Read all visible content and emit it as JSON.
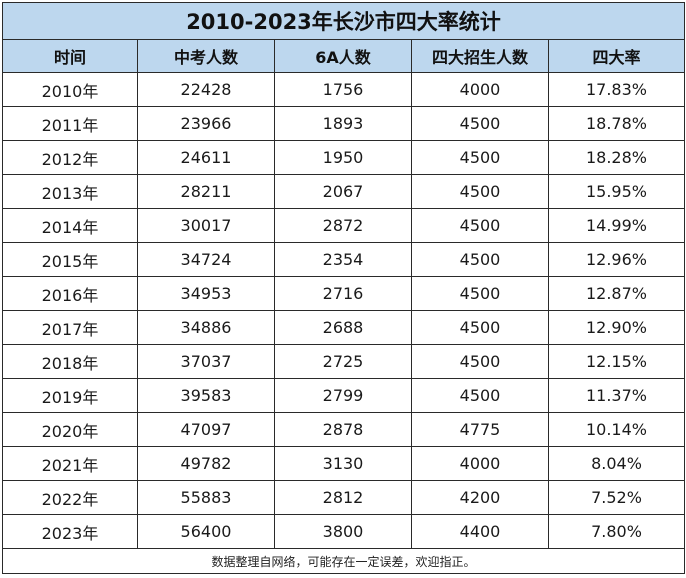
{
  "title": "2010-2023年长沙市四大率统计",
  "columns": [
    "时间",
    "中考人数",
    "6A人数",
    "四大招生人数",
    "四大率"
  ],
  "rows": [
    [
      "2010年",
      "22428",
      "1756",
      "4000",
      "17.83%"
    ],
    [
      "2011年",
      "23966",
      "1893",
      "4500",
      "18.78%"
    ],
    [
      "2012年",
      "24611",
      "1950",
      "4500",
      "18.28%"
    ],
    [
      "2013年",
      "28211",
      "2067",
      "4500",
      "15.95%"
    ],
    [
      "2014年",
      "30017",
      "2872",
      "4500",
      "14.99%"
    ],
    [
      "2015年",
      "34724",
      "2354",
      "4500",
      "12.96%"
    ],
    [
      "2016年",
      "34953",
      "2716",
      "4500",
      "12.87%"
    ],
    [
      "2017年",
      "34886",
      "2688",
      "4500",
      "12.90%"
    ],
    [
      "2018年",
      "37037",
      "2725",
      "4500",
      "12.15%"
    ],
    [
      "2019年",
      "39583",
      "2799",
      "4500",
      "11.37%"
    ],
    [
      "2020年",
      "47097",
      "2878",
      "4775",
      "10.14%"
    ],
    [
      "2021年",
      "49782",
      "3130",
      "4000",
      "8.04%"
    ],
    [
      "2022年",
      "55883",
      "2812",
      "4200",
      "7.52%"
    ],
    [
      "2023年",
      "56400",
      "3800",
      "4400",
      "7.80%"
    ]
  ],
  "footer": "数据整理自网络，可能存在一定误差，欢迎指正。",
  "colors": {
    "header_bg": "#bdd7ee",
    "border": "#2a2a2a",
    "text": "#1a1a1a"
  }
}
